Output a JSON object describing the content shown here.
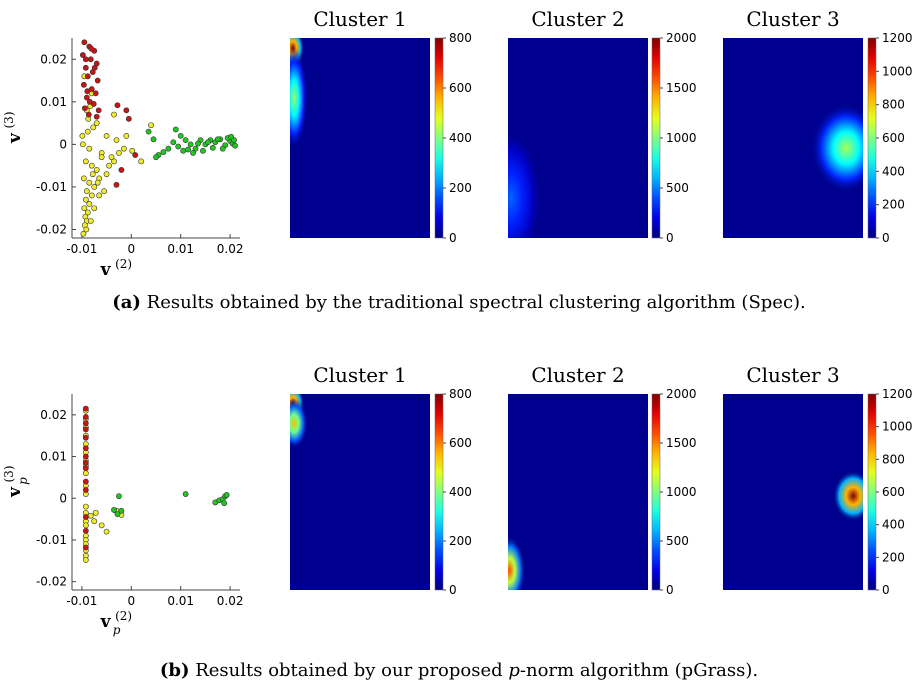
{
  "colors": {
    "red": "#c81414",
    "yellow": "#f0ec2a",
    "green": "#1ec81e",
    "heatmap_background": "#00008f"
  },
  "captions": [
    {
      "tag": "(a)",
      "text": "Results obtained by the traditional spectral clustering algorithm (Spec)."
    },
    {
      "tag": "(b)",
      "pre": "Results obtained by our proposed ",
      "it": "p",
      "post": "-norm algorithm (pGrass)."
    }
  ],
  "chart_data": [
    {
      "type": "scatter",
      "panel": "a",
      "xlabel": {
        "base": "v",
        "sub": "",
        "sup": "(2)"
      },
      "ylabel": {
        "base": "v",
        "sub": "",
        "sup": "(3)"
      },
      "xlim": [
        -0.012,
        0.022
      ],
      "ylim": [
        -0.022,
        0.025
      ],
      "xticks": [
        -0.01,
        0,
        0.01,
        0.02
      ],
      "xtick_labels": [
        "-0.01",
        "0",
        "0.01",
        "0.02"
      ],
      "yticks": [
        -0.02,
        -0.01,
        0,
        0.01,
        0.02
      ],
      "ytick_labels": [
        "-0.02",
        "-0.01",
        "0",
        "0.01",
        "0.02"
      ],
      "series": [
        {
          "color": "red",
          "points": [
            [
              -0.0095,
              0.024
            ],
            [
              -0.0085,
              0.023
            ],
            [
              -0.0075,
              0.022
            ],
            [
              -0.0098,
              0.021
            ],
            [
              -0.0082,
              0.02
            ],
            [
              -0.007,
              0.019
            ],
            [
              -0.0092,
              0.018
            ],
            [
              -0.0078,
              0.017
            ],
            [
              -0.0088,
              0.016
            ],
            [
              -0.0068,
              0.015
            ],
            [
              -0.0096,
              0.014
            ],
            [
              -0.008,
              0.013
            ],
            [
              -0.0072,
              0.012
            ],
            [
              -0.009,
              0.011
            ],
            [
              -0.0084,
              0.01
            ],
            [
              -0.0076,
              0.0095
            ],
            [
              -0.0094,
              0.0085
            ],
            [
              -0.0066,
              0.008
            ],
            [
              -0.0086,
              0.007
            ],
            [
              -0.007,
              0.0065
            ],
            [
              -0.0028,
              0.0092
            ],
            [
              -0.001,
              0.008
            ],
            [
              -0.0005,
              0.006
            ],
            [
              0.0008,
              -0.0025
            ],
            [
              -0.002,
              -0.006
            ],
            [
              -0.003,
              -0.0095
            ],
            [
              -0.0074,
              0.018
            ],
            [
              -0.0092,
              0.02
            ],
            [
              -0.0081,
              0.0225
            ],
            [
              -0.0089,
              0.0125
            ]
          ]
        },
        {
          "color": "yellow",
          "points": [
            [
              -0.0095,
              0.016
            ],
            [
              -0.008,
              0.012
            ],
            [
              -0.009,
              0.008
            ],
            [
              -0.007,
              0.005
            ],
            [
              -0.0088,
              0.003
            ],
            [
              -0.005,
              0.002
            ],
            [
              -0.003,
              0.001
            ],
            [
              -0.0098,
              0.0
            ],
            [
              -0.0085,
              -0.001
            ],
            [
              -0.006,
              -0.002
            ],
            [
              -0.004,
              -0.003
            ],
            [
              -0.0092,
              -0.004
            ],
            [
              -0.008,
              -0.005
            ],
            [
              -0.007,
              -0.006
            ],
            [
              -0.005,
              -0.007
            ],
            [
              -0.0096,
              -0.008
            ],
            [
              -0.0085,
              -0.009
            ],
            [
              -0.0075,
              -0.01
            ],
            [
              -0.009,
              -0.011
            ],
            [
              -0.008,
              -0.012
            ],
            [
              -0.0092,
              -0.013
            ],
            [
              -0.0085,
              -0.014
            ],
            [
              -0.0095,
              -0.015
            ],
            [
              -0.0088,
              -0.016
            ],
            [
              -0.0093,
              -0.017
            ],
            [
              -0.009,
              -0.018
            ],
            [
              -0.0094,
              -0.019
            ],
            [
              -0.0091,
              -0.02
            ],
            [
              -0.0097,
              -0.021
            ],
            [
              -0.0065,
              -0.008
            ],
            [
              -0.0055,
              -0.011
            ],
            [
              -0.0045,
              -0.005
            ],
            [
              -0.0035,
              -0.004
            ],
            [
              -0.0025,
              -0.002
            ],
            [
              -0.0015,
              -0.001
            ],
            [
              0.0002,
              -0.0015
            ],
            [
              0.002,
              -0.004
            ],
            [
              -0.001,
              0.002
            ],
            [
              -0.0083,
              0.009
            ],
            [
              -0.0087,
              0.006
            ],
            [
              -0.0077,
              0.004
            ],
            [
              -0.0099,
              0.002
            ],
            [
              -0.0065,
              -0.012
            ],
            [
              -0.0075,
              -0.015
            ],
            [
              -0.006,
              -0.003
            ],
            [
              -0.0035,
              0.007
            ],
            [
              0.004,
              0.0045
            ],
            [
              -0.0082,
              -0.018
            ],
            [
              -0.0078,
              -0.007
            ],
            [
              -0.0068,
              -0.009
            ]
          ]
        },
        {
          "color": "green",
          "points": [
            [
              0.009,
              0.0035
            ],
            [
              0.01,
              0.002
            ],
            [
              0.011,
              0.001
            ],
            [
              0.012,
              0.0
            ],
            [
              0.013,
              -0.001
            ],
            [
              0.014,
              0.001
            ],
            [
              0.015,
              0.0
            ],
            [
              0.016,
              0.001
            ],
            [
              0.017,
              0.0005
            ],
            [
              0.018,
              0.0012
            ],
            [
              0.019,
              -0.0002
            ],
            [
              0.02,
              0.0008
            ],
            [
              0.0205,
              0.0002
            ],
            [
              0.021,
              -0.0003
            ],
            [
              0.0195,
              0.0015
            ],
            [
              0.0185,
              -0.001
            ],
            [
              0.0175,
              0.0012
            ],
            [
              0.0165,
              -0.0008
            ],
            [
              0.0155,
              0.0005
            ],
            [
              0.0145,
              -0.0015
            ],
            [
              0.0135,
              0.0002
            ],
            [
              0.0125,
              -0.002
            ],
            [
              0.0115,
              -0.0012
            ],
            [
              0.0105,
              -0.0015
            ],
            [
              0.0095,
              -0.0005
            ],
            [
              0.0085,
              0.0005
            ],
            [
              0.0075,
              -0.001
            ],
            [
              0.0065,
              -0.0018
            ],
            [
              0.0055,
              -0.0025
            ],
            [
              0.0035,
              0.003
            ],
            [
              0.0045,
              0.0012
            ],
            [
              0.005,
              -0.003
            ],
            [
              0.0202,
              0.0018
            ],
            [
              0.0208,
              0.001
            ]
          ]
        }
      ]
    },
    {
      "type": "heatmap",
      "panel": "a",
      "title": "Cluster 1",
      "colorbar_ticks": [
        0,
        200,
        400,
        600,
        800
      ],
      "colorbar_tick_labels": [
        "0",
        "200",
        "400",
        "600",
        "800"
      ],
      "clim": [
        0,
        800
      ],
      "blobs": [
        {
          "x": 0.02,
          "y": 0.05,
          "rx": 0.05,
          "ry": 0.06,
          "value": 800
        },
        {
          "x": 0.03,
          "y": 0.3,
          "rx": 0.06,
          "ry": 0.16,
          "value": 420
        }
      ]
    },
    {
      "type": "heatmap",
      "panel": "a",
      "title": "Cluster 2",
      "colorbar_ticks": [
        0,
        500,
        1000,
        1500,
        2000
      ],
      "colorbar_tick_labels": [
        "0",
        "500",
        "1000",
        "1500",
        "2000"
      ],
      "clim": [
        0,
        2000
      ],
      "blobs": [
        {
          "x": 0.02,
          "y": 0.8,
          "rx": 0.14,
          "ry": 0.22,
          "value": 450
        }
      ]
    },
    {
      "type": "heatmap",
      "panel": "a",
      "title": "Cluster 3",
      "colorbar_ticks": [
        0,
        200,
        400,
        600,
        800,
        1000,
        1200
      ],
      "colorbar_tick_labels": [
        "0",
        "200",
        "400",
        "600",
        "800",
        "1000",
        "1200"
      ],
      "clim": [
        0,
        1200
      ],
      "blobs": [
        {
          "x": 0.88,
          "y": 0.55,
          "rx": 0.16,
          "ry": 0.14,
          "value": 650
        }
      ]
    },
    {
      "type": "scatter",
      "panel": "b",
      "xlabel": {
        "base": "v",
        "sub": "p",
        "sup": "(2)"
      },
      "ylabel": {
        "base": "v",
        "sub": "p",
        "sup": "(3)"
      },
      "xlim": [
        -0.012,
        0.022
      ],
      "ylim": [
        -0.022,
        0.025
      ],
      "xticks": [
        -0.01,
        0,
        0.01,
        0.02
      ],
      "xtick_labels": [
        "-0.01",
        "0",
        "0.01",
        "0.02"
      ],
      "yticks": [
        -0.02,
        -0.01,
        0,
        0.01,
        0.02
      ],
      "ytick_labels": [
        "-0.02",
        "-0.01",
        "0",
        "0.01",
        "0.02"
      ],
      "series": [
        {
          "color": "red",
          "points": [
            [
              -0.0092,
              0.0215
            ],
            [
              -0.0092,
              0.0195
            ],
            [
              -0.0092,
              0.018
            ],
            [
              -0.0092,
              0.0165
            ],
            [
              -0.0092,
              0.0145
            ],
            [
              -0.0092,
              0.012
            ],
            [
              -0.0092,
              0.01
            ],
            [
              -0.0092,
              0.0085
            ],
            [
              -0.0092,
              0.0072
            ],
            [
              -0.0092,
              0.004
            ],
            [
              -0.0092,
              0.002
            ],
            [
              -0.0092,
              -0.0045
            ],
            [
              -0.0092,
              -0.0078
            ],
            [
              -0.0092,
              -0.0118
            ]
          ]
        },
        {
          "color": "yellow",
          "points": [
            [
              -0.0092,
              0.021
            ],
            [
              -0.0092,
              0.019
            ],
            [
              -0.0092,
              0.017
            ],
            [
              -0.0092,
              0.015
            ],
            [
              -0.0092,
              0.013
            ],
            [
              -0.0092,
              0.011
            ],
            [
              -0.0092,
              0.009
            ],
            [
              -0.0092,
              0.0078
            ],
            [
              -0.0092,
              0.006
            ],
            [
              -0.0092,
              0.003
            ],
            [
              -0.0092,
              0.001
            ],
            [
              -0.0092,
              -0.002
            ],
            [
              -0.0092,
              -0.0035
            ],
            [
              -0.0092,
              -0.0055
            ],
            [
              -0.0092,
              -0.0065
            ],
            [
              -0.0092,
              -0.009
            ],
            [
              -0.0092,
              -0.01
            ],
            [
              -0.0092,
              -0.011
            ],
            [
              -0.0092,
              -0.0125
            ],
            [
              -0.0092,
              -0.0138
            ],
            [
              -0.0092,
              -0.0148
            ],
            [
              -0.0082,
              -0.0042
            ],
            [
              -0.0075,
              -0.0055
            ],
            [
              -0.006,
              -0.0065
            ],
            [
              -0.005,
              -0.008
            ],
            [
              -0.003,
              -0.003
            ],
            [
              -0.002,
              -0.004
            ],
            [
              -0.0072,
              -0.0035
            ]
          ]
        },
        {
          "color": "green",
          "points": [
            [
              -0.0025,
              0.0005
            ],
            [
              -0.0035,
              -0.0028
            ],
            [
              -0.0028,
              -0.0038
            ],
            [
              -0.002,
              -0.003
            ],
            [
              0.011,
              0.001
            ],
            [
              0.017,
              -0.001
            ],
            [
              0.0178,
              -0.0005
            ],
            [
              0.0185,
              -0.0002
            ],
            [
              0.019,
              0.0005
            ],
            [
              0.0193,
              0.0008
            ],
            [
              0.0188,
              -0.0012
            ]
          ]
        }
      ]
    },
    {
      "type": "heatmap",
      "panel": "b",
      "title": "Cluster 1",
      "colorbar_ticks": [
        0,
        200,
        400,
        600,
        800
      ],
      "colorbar_tick_labels": [
        "0",
        "200",
        "400",
        "600",
        "800"
      ],
      "clim": [
        0,
        800
      ],
      "blobs": [
        {
          "x": 0.02,
          "y": 0.05,
          "rx": 0.05,
          "ry": 0.06,
          "value": 800
        },
        {
          "x": 0.03,
          "y": 0.15,
          "rx": 0.06,
          "ry": 0.08,
          "value": 550
        }
      ]
    },
    {
      "type": "heatmap",
      "panel": "b",
      "title": "Cluster 2",
      "colorbar_ticks": [
        0,
        500,
        1000,
        1500,
        2000
      ],
      "colorbar_tick_labels": [
        "0",
        "500",
        "1000",
        "1500",
        "2000"
      ],
      "clim": [
        0,
        2000
      ],
      "blobs": [
        {
          "x": 0.01,
          "y": 0.9,
          "rx": 0.07,
          "ry": 0.11,
          "value": 1600
        }
      ]
    },
    {
      "type": "heatmap",
      "panel": "b",
      "title": "Cluster 3",
      "colorbar_ticks": [
        0,
        200,
        400,
        600,
        800,
        1000,
        1200
      ],
      "colorbar_tick_labels": [
        "0",
        "200",
        "400",
        "600",
        "800",
        "1000",
        "1200"
      ],
      "clim": [
        0,
        1200
      ],
      "blobs": [
        {
          "x": 0.93,
          "y": 0.52,
          "rx": 0.09,
          "ry": 0.08,
          "value": 1200
        }
      ]
    }
  ]
}
